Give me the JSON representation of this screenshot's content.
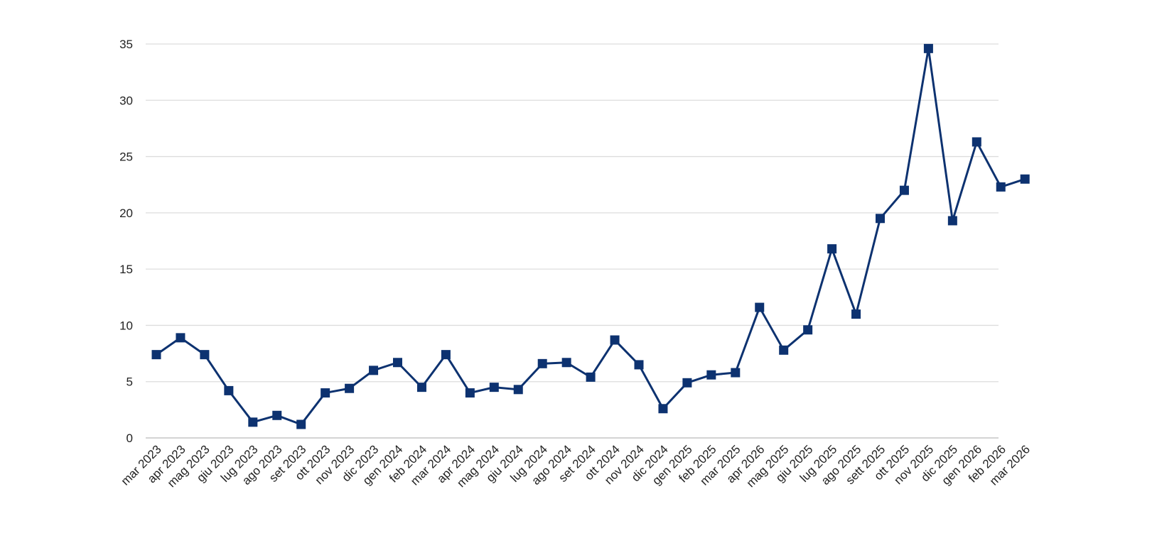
{
  "chart_data": {
    "type": "line",
    "title": "",
    "xlabel": "",
    "ylabel": "",
    "ylim": [
      0,
      35
    ],
    "y_ticks": [
      0,
      5,
      10,
      15,
      20,
      25,
      30,
      35
    ],
    "grid": "horizontal",
    "legend": "none",
    "categories": [
      "mar 2023",
      "apr 2023",
      "mag 2023",
      "giu 2023",
      "lug 2023",
      "ago 2023",
      "set 2023",
      "ott 2023",
      "nov 2023",
      "dic 2023",
      "gen 2024",
      "feb 2024",
      "mar 2024",
      "apr 2024",
      "mag 2024",
      "giu 2024",
      "lug 2024",
      "ago 2024",
      "set 2024",
      "ott 2024",
      "nov 2024",
      "dic 2024",
      "gen 2025",
      "feb 2025",
      "mar 2025",
      "apr 2026",
      "mag 2025",
      "giu 2025",
      "lug 2025",
      "ago 2025",
      "sett 2025",
      "ott 2025",
      "nov 2025",
      "dic 2025",
      "gen 2026",
      "feb 2026",
      "mar 2026"
    ],
    "series": [
      {
        "values": [
          7.4,
          8.9,
          7.4,
          4.2,
          1.4,
          2.0,
          1.2,
          4.0,
          4.4,
          6.0,
          6.7,
          4.5,
          7.4,
          4.0,
          4.5,
          4.3,
          6.6,
          6.7,
          5.4,
          8.7,
          6.5,
          2.6,
          4.9,
          5.6,
          5.8,
          11.6,
          7.8,
          9.6,
          16.8,
          11.0,
          19.5,
          22.0,
          34.6,
          19.3,
          26.3,
          22.3,
          23.0
        ],
        "color": "#0d3270",
        "marker": "square"
      }
    ],
    "colors": {
      "line": "#0d3270",
      "grid": "#dddddd",
      "axis": "#bbbbbb",
      "text": "#222222"
    }
  }
}
